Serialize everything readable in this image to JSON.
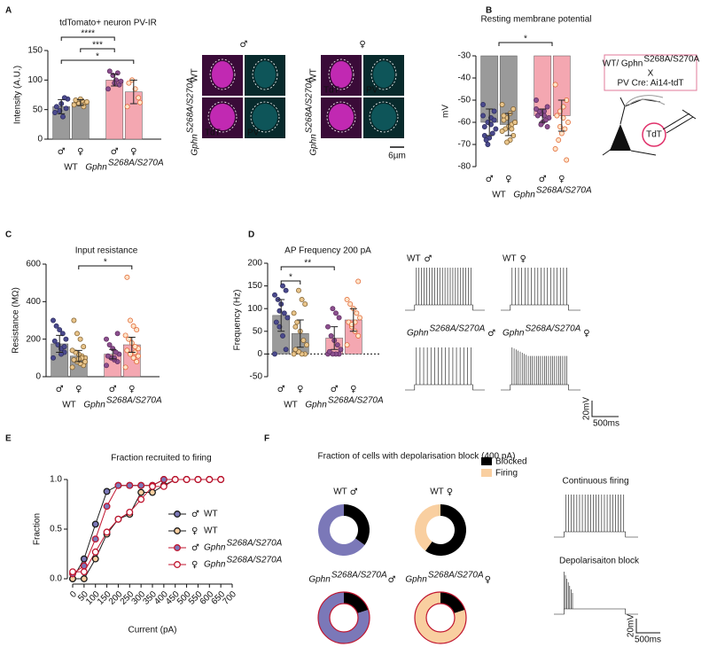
{
  "panels": [
    "A",
    "B",
    "C",
    "D",
    "E",
    "F"
  ],
  "style": {
    "male": "#2f6fd1",
    "female": "#e08a2c",
    "gphn": "#9b1b1b"
  },
  "images": {
    "sexes": [
      "♂",
      "♀"
    ],
    "rows": [
      "WT",
      "Gphn"
    ],
    "row_sup": "S268A/S270A",
    "channels": [
      "TdT",
      "PV"
    ],
    "scale": "6µm"
  },
  "schematic": {
    "line1": "WT/ Gphn",
    "line1_sup": "S268A/S270A",
    "cross": "X",
    "line2": "PV Cre: Ai14-tdT",
    "cell": "TdT"
  },
  "traces_D": {
    "labels": [
      {
        "text": "WT",
        "sex": "♂"
      },
      {
        "text": "WT",
        "sex": "♀"
      },
      {
        "text": "Gphn",
        "sup": "S268A/S270A",
        "sex": "♂"
      },
      {
        "text": "Gphn",
        "sup": "S268A/S270A",
        "sex": "♀"
      }
    ],
    "scale_v": "20mV",
    "scale_t": "500ms"
  },
  "traces_F": {
    "labels": [
      "Continuous firing",
      "Depolarisaiton block"
    ],
    "scale_v": "20mV",
    "scale_t": "500ms"
  },
  "chart_data": [
    {
      "type": "bar",
      "title": "tdTomato+ neuron PV-IR",
      "y_label": "Intensity (A.U.)",
      "categories": [
        "♂",
        "♀",
        "♂",
        "♀"
      ],
      "category_colors": [
        "#2f6fd1",
        "#e08a2c",
        "#2f6fd1",
        "#e08a2c"
      ],
      "groups": [
        "WT",
        "Gphn"
      ],
      "group_sup": "S268A/S270A",
      "values": [
        55,
        62,
        100,
        80
      ],
      "errors": [
        12,
        5,
        10,
        20
      ],
      "points": [
        [
          45,
          52,
          38,
          48,
          55,
          68,
          70,
          60
        ],
        [
          58,
          62,
          65,
          60,
          66,
          63,
          55,
          68
        ],
        [
          85,
          92,
          100,
          108,
          115,
          98,
          112,
          95
        ],
        [
          55,
          70,
          85,
          100,
          95,
          62
        ]
      ],
      "bar_colors": [
        "#9a9a9a",
        "#9a9a9a",
        "#f4a7b1",
        "#f4a7b1"
      ],
      "point_fills": [
        "#4b4a8e",
        "#e8c48a",
        "#8c4f8f",
        "#fde3c8"
      ],
      "point_edges": [
        "#2a2a5a",
        "#7a5a2a",
        "#5a2a5a",
        "#e0602a"
      ],
      "significance": [
        "****",
        "***",
        "*"
      ],
      "ylim": [
        0,
        150
      ],
      "yticks": [
        0,
        50,
        100,
        150
      ]
    },
    {
      "type": "bar",
      "title": "Resting membrane potential",
      "y_label": "mV",
      "bar_origin": "top",
      "categories": [
        "♂",
        "♀",
        "♂",
        "♀"
      ],
      "category_colors": [
        "#2f6fd1",
        "#e08a2c",
        "#2f6fd1",
        "#e08a2c"
      ],
      "groups": [
        "WT",
        "Gphn"
      ],
      "group_sup": "S268A/S270A",
      "values": [
        -60,
        -61,
        -57,
        -57
      ],
      "errors": [
        6,
        5,
        3,
        7
      ],
      "points": [
        [
          -52,
          -55,
          -58,
          -60,
          -62,
          -63,
          -65,
          -67,
          -68,
          -57,
          -59,
          -61,
          -70,
          -66
        ],
        [
          -52,
          -54,
          -56,
          -58,
          -59,
          -60,
          -61,
          -62,
          -63,
          -64,
          -66,
          -68,
          -69,
          -57,
          -60,
          -63
        ],
        [
          -50,
          -53,
          -55,
          -56,
          -57,
          -58,
          -59,
          -60,
          -55,
          -54,
          -62,
          -57,
          -61
        ],
        [
          -43,
          -50,
          -53,
          -55,
          -57,
          -60,
          -63,
          -65,
          -68,
          -72,
          -77,
          -58,
          -62
        ]
      ],
      "bar_colors": [
        "#9a9a9a",
        "#9a9a9a",
        "#f4a7b1",
        "#f4a7b1"
      ],
      "point_fills": [
        "#4b4a8e",
        "#e8c48a",
        "#8c4f8f",
        "#fde3c8"
      ],
      "point_edges": [
        "#2a2a5a",
        "#7a5a2a",
        "#5a2a5a",
        "#e0602a"
      ],
      "significance": [
        "*"
      ],
      "ylim": [
        -80,
        -30
      ],
      "yticks": [
        -80,
        -70,
        -60,
        -50,
        -40,
        -30
      ]
    },
    {
      "type": "bar",
      "title": "Input resistance",
      "y_label": "Resistance (MΩ)",
      "categories": [
        "♂",
        "♀",
        "♂",
        "♀"
      ],
      "category_colors": [
        "#2f6fd1",
        "#e08a2c",
        "#2f6fd1",
        "#e08a2c"
      ],
      "groups": [
        "WT",
        "Gphn"
      ],
      "group_sup": "S268A/S270A",
      "values": [
        175,
        110,
        120,
        170
      ],
      "errors": [
        45,
        30,
        25,
        40
      ],
      "points": [
        [
          100,
          130,
          150,
          170,
          190,
          200,
          230,
          250,
          270,
          300,
          160,
          120
        ],
        [
          50,
          60,
          70,
          80,
          90,
          100,
          110,
          120,
          130,
          140,
          160,
          200,
          230,
          300,
          80,
          100,
          95
        ],
        [
          60,
          80,
          90,
          100,
          110,
          120,
          130,
          150,
          170,
          200,
          230,
          100
        ],
        [
          50,
          80,
          100,
          120,
          140,
          150,
          160,
          180,
          200,
          220,
          250,
          270,
          300,
          530,
          110,
          130
        ]
      ],
      "bar_colors": [
        "#9a9a9a",
        "#9a9a9a",
        "#f4a7b1",
        "#f4a7b1"
      ],
      "point_fills": [
        "#4b4a8e",
        "#e8c48a",
        "#8c4f8f",
        "#fde3c8"
      ],
      "point_edges": [
        "#2a2a5a",
        "#7a5a2a",
        "#5a2a5a",
        "#e0602a"
      ],
      "significance": [
        "*"
      ],
      "ylim": [
        0,
        600
      ],
      "yticks": [
        0,
        200,
        400,
        600
      ]
    },
    {
      "type": "bar",
      "title": "AP Frequency 200 pA",
      "y_label": "Frequency (Hz)",
      "zero_line": true,
      "categories": [
        "♂",
        "♀",
        "♂",
        "♀"
      ],
      "category_colors": [
        "#2f6fd1",
        "#e08a2c",
        "#2f6fd1",
        "#e08a2c"
      ],
      "groups": [
        "WT",
        "Gphn"
      ],
      "group_sup": "S268A/S270A",
      "values": [
        85,
        45,
        35,
        75
      ],
      "errors": [
        35,
        30,
        25,
        25
      ],
      "points": [
        [
          0,
          10,
          40,
          60,
          70,
          80,
          90,
          110,
          120,
          130,
          140,
          150,
          95
        ],
        [
          0,
          0,
          0,
          5,
          10,
          20,
          30,
          50,
          70,
          90,
          110,
          120,
          140,
          60
        ],
        [
          0,
          0,
          0,
          0,
          5,
          10,
          20,
          30,
          40,
          60,
          80,
          90,
          100
        ],
        [
          20,
          40,
          50,
          60,
          70,
          80,
          90,
          100,
          110,
          120,
          160,
          70,
          65
        ]
      ],
      "bar_colors": [
        "#9a9a9a",
        "#9a9a9a",
        "#f4a7b1",
        "#f4a7b1"
      ],
      "point_fills": [
        "#4b4a8e",
        "#e8c48a",
        "#8c4f8f",
        "#fde3c8"
      ],
      "point_edges": [
        "#2a2a5a",
        "#7a5a2a",
        "#5a2a5a",
        "#e0602a"
      ],
      "significance": [
        "*",
        "**"
      ],
      "ylim": [
        -50,
        200
      ],
      "yticks": [
        -50,
        0,
        50,
        100,
        150,
        200
      ]
    },
    {
      "type": "line",
      "title": "Fraction recruited to firing",
      "x_label": "Current (pA)",
      "y_label": "Fraction",
      "x": [
        0,
        50,
        100,
        150,
        200,
        250,
        300,
        350,
        400,
        450,
        500,
        550,
        600,
        650
      ],
      "xlim": [
        0,
        700
      ],
      "xticks": [
        0,
        50,
        100,
        150,
        200,
        250,
        300,
        350,
        400,
        450,
        500,
        550,
        600,
        650,
        700
      ],
      "ylim": [
        0,
        1
      ],
      "yticks": [
        {
          "value": 0,
          "label": "0.0"
        },
        {
          "value": 0.5,
          "label": "0.5"
        },
        {
          "value": 1,
          "label": "1.0"
        }
      ],
      "series": [
        {
          "sex": "♂",
          "name": "WT",
          "color": "#1a1a1a",
          "fill": "#7b78b8",
          "values": [
            0,
            0.2,
            0.55,
            0.88,
            0.94,
            0.94,
            0.94,
            0.94,
            1,
            1,
            1,
            1,
            1,
            1
          ]
        },
        {
          "sex": "♀",
          "name": "WT",
          "color": "#1a1a1a",
          "fill": "#f9cfa0",
          "values": [
            0,
            0,
            0.2,
            0.45,
            0.6,
            0.65,
            0.87,
            0.87,
            0.94,
            1,
            1,
            1,
            1,
            1
          ]
        },
        {
          "sex": "♂",
          "name": "Gphn",
          "name_sup": "S268A/S270A",
          "color": "#c0152f",
          "fill": "#7b78b8",
          "values": [
            0.05,
            0.13,
            0.4,
            0.73,
            0.94,
            0.94,
            0.94,
            0.94,
            1,
            1,
            1,
            1,
            1,
            1
          ]
        },
        {
          "sex": "♀",
          "name": "Gphn",
          "name_sup": "S268A/S270A",
          "color": "#c0152f",
          "fill": "#ffffff",
          "values": [
            0.07,
            0.07,
            0.27,
            0.47,
            0.6,
            0.67,
            0.8,
            0.93,
            0.93,
            1,
            1,
            1,
            1,
            1
          ]
        }
      ]
    },
    {
      "type": "pie",
      "title": "Fraction of cells with depolarisation block (400 pA)",
      "categories": [
        "Blocked",
        "Firing"
      ],
      "legend_colors": [
        "#000000",
        "#f9cfa0"
      ],
      "pies": [
        {
          "label": "WT",
          "sex": "♂",
          "values": [
            35,
            65
          ],
          "colors": [
            "#000000",
            "#7b78b8"
          ]
        },
        {
          "label": "WT",
          "sex": "♀",
          "values": [
            60,
            40
          ],
          "colors": [
            "#000000",
            "#f9cfa0"
          ]
        },
        {
          "label": "Gphn",
          "sup": "S268A/S270A",
          "sex": "♂",
          "values": [
            20,
            80
          ],
          "colors": [
            "#000000",
            "#7b78b8"
          ],
          "edge": "#c0152f"
        },
        {
          "label": "Gphn",
          "sup": "S268A/S270A",
          "sex": "♀",
          "values": [
            20,
            80
          ],
          "colors": [
            "#000000",
            "#f9cfa0"
          ],
          "edge": "#c0152f"
        }
      ]
    }
  ]
}
